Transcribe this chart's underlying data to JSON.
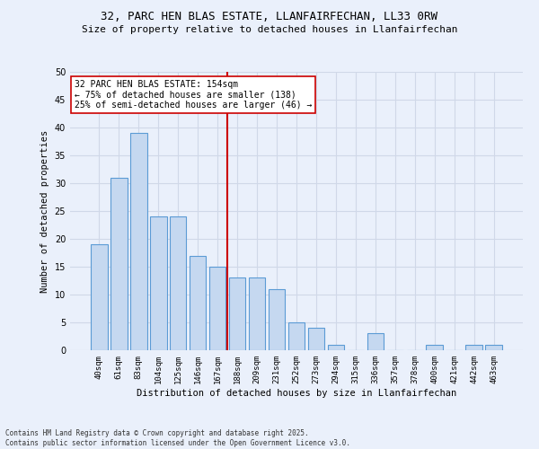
{
  "title_line1": "32, PARC HEN BLAS ESTATE, LLANFAIRFECHAN, LL33 0RW",
  "title_line2": "Size of property relative to detached houses in Llanfairfechan",
  "xlabel": "Distribution of detached houses by size in Llanfairfechan",
  "ylabel": "Number of detached properties",
  "categories": [
    "40sqm",
    "61sqm",
    "83sqm",
    "104sqm",
    "125sqm",
    "146sqm",
    "167sqm",
    "188sqm",
    "209sqm",
    "231sqm",
    "252sqm",
    "273sqm",
    "294sqm",
    "315sqm",
    "336sqm",
    "357sqm",
    "378sqm",
    "400sqm",
    "421sqm",
    "442sqm",
    "463sqm"
  ],
  "values": [
    19,
    31,
    39,
    24,
    24,
    17,
    15,
    13,
    13,
    11,
    5,
    4,
    1,
    0,
    3,
    0,
    0,
    1,
    0,
    1,
    1
  ],
  "bar_color": "#c5d8f0",
  "bar_edge_color": "#5b9bd5",
  "vline_x": 6.5,
  "vline_color": "#cc0000",
  "annotation_text": "32 PARC HEN BLAS ESTATE: 154sqm\n← 75% of detached houses are smaller (138)\n25% of semi-detached houses are larger (46) →",
  "annotation_box_color": "#ffffff",
  "annotation_box_edge": "#cc0000",
  "ylim": [
    0,
    50
  ],
  "yticks": [
    0,
    5,
    10,
    15,
    20,
    25,
    30,
    35,
    40,
    45,
    50
  ],
  "grid_color": "#d0d8e8",
  "background_color": "#eaf0fb",
  "footnote": "Contains HM Land Registry data © Crown copyright and database right 2025.\nContains public sector information licensed under the Open Government Licence v3.0."
}
